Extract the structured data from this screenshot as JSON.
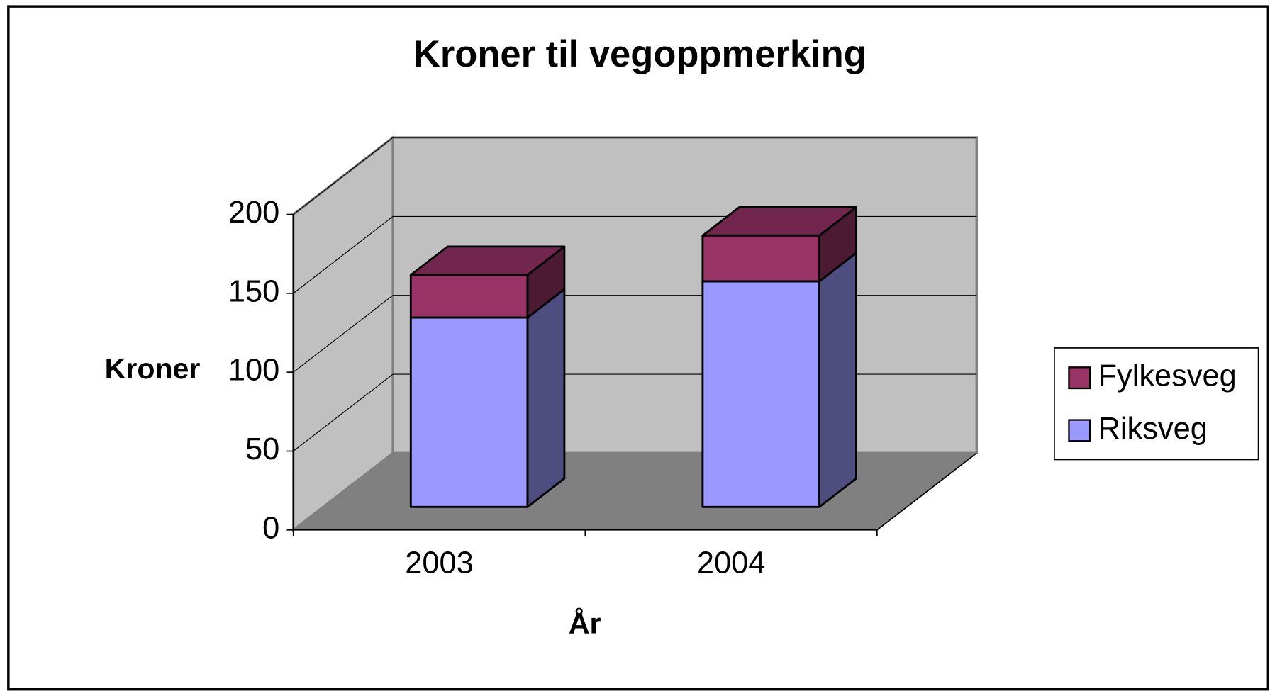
{
  "chart_data": {
    "type": "bar3d_stacked",
    "title": "Kroner til vegoppmerking",
    "y_label": "Kroner",
    "x_label": "År",
    "categories": [
      "2003",
      "2004"
    ],
    "series": [
      {
        "name": "Riksveg",
        "color": "#9999ff",
        "values": [
          120,
          143
        ]
      },
      {
        "name": "Fylkesveg",
        "color": "#993366",
        "values": [
          27,
          29
        ]
      }
    ],
    "ylim": [
      0,
      200
    ],
    "yticks": [
      0,
      50,
      100,
      150,
      200
    ],
    "grid": true,
    "legend": "right"
  }
}
